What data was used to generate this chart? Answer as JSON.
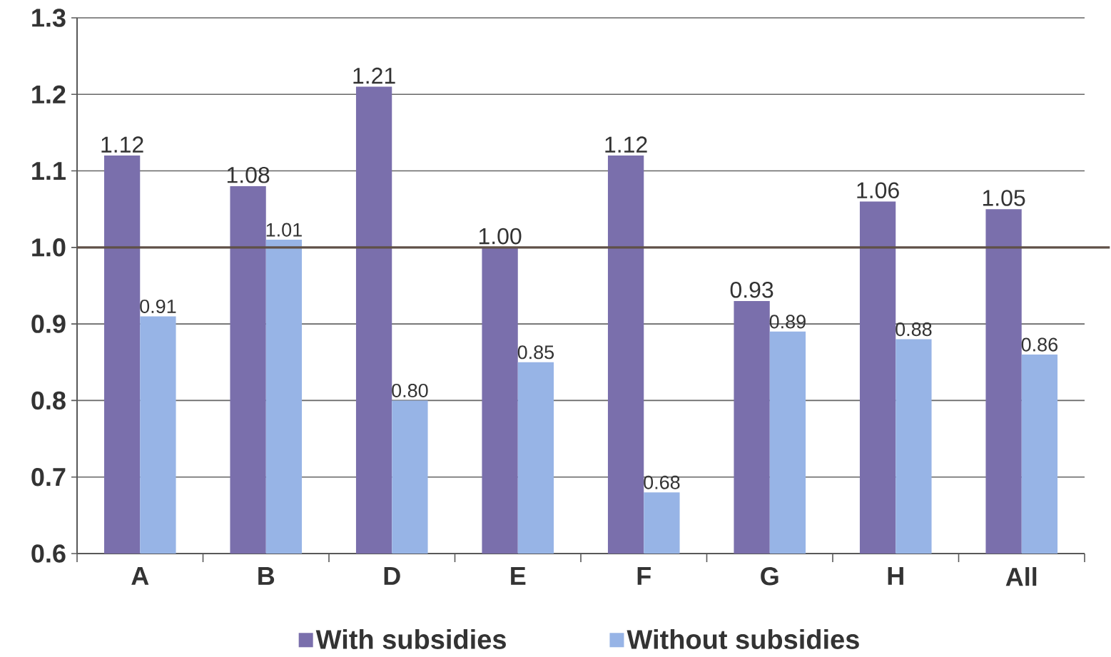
{
  "chart_data": {
    "type": "bar",
    "categories": [
      "A",
      "B",
      "D",
      "E",
      "F",
      "G",
      "H",
      "All"
    ],
    "series": [
      {
        "name": "With subsidies",
        "color": "#7a6fac",
        "values": [
          1.12,
          1.08,
          1.21,
          1.0,
          1.12,
          0.93,
          1.06,
          1.05
        ],
        "value_labels": [
          "1.12",
          "1.08",
          "1.21",
          "1.00",
          "1.12",
          "0.93",
          "1.06",
          "1.05"
        ]
      },
      {
        "name": "Without subsidies",
        "color": "#97b4e6",
        "values": [
          0.91,
          1.01,
          0.8,
          0.85,
          0.68,
          0.89,
          0.88,
          0.86
        ],
        "value_labels": [
          "0.91",
          "1.01",
          "0.80",
          "0.85",
          "0.68",
          "0.89",
          "0.88",
          "0.86"
        ]
      }
    ],
    "ylim": [
      0.6,
      1.3
    ],
    "yticks": [
      0.6,
      0.7,
      0.8,
      0.9,
      {
        "value": 1.0,
        "label": "1.0"
      },
      1.1,
      1.2,
      1.3
    ],
    "grid": "y",
    "legend": "bottom",
    "ref_lines": [
      {
        "axis": "y",
        "value": 1.0,
        "color": "#5f5047"
      }
    ]
  }
}
